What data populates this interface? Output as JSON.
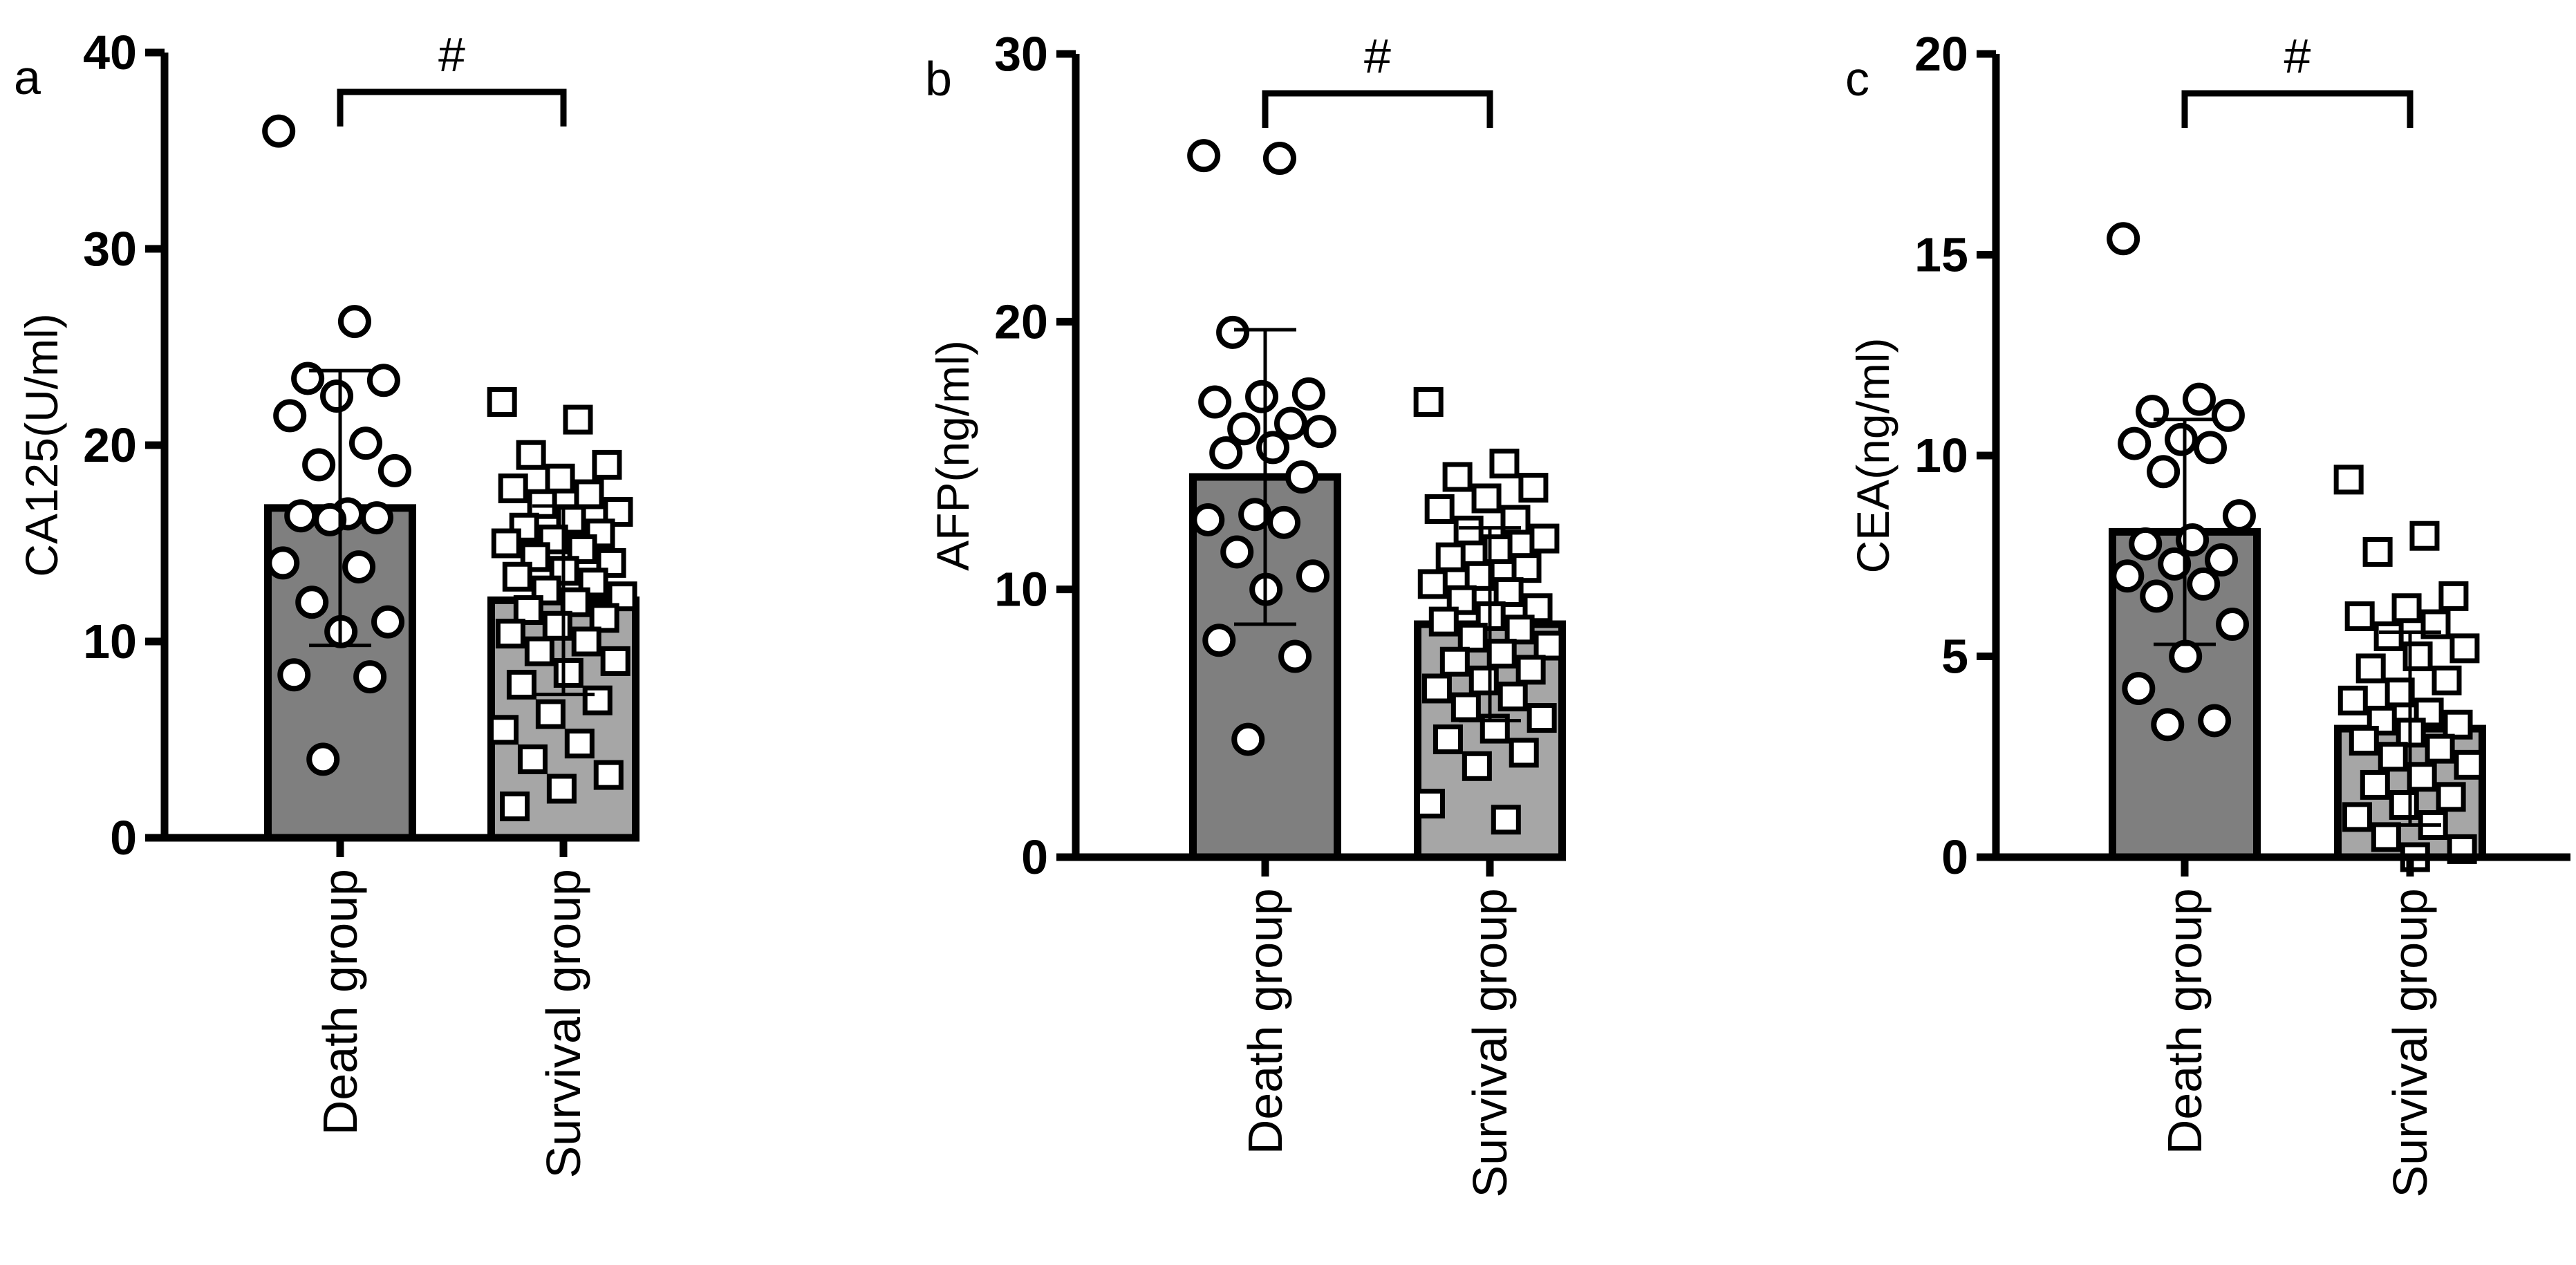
{
  "chart_data": [
    {
      "type": "bar",
      "panel_label": "a",
      "ylabel": "CA125(U/ml)",
      "annotation": "#",
      "categories": [
        "Death group",
        "Survival group"
      ],
      "values": [
        16.8,
        12.1
      ],
      "errors": [
        7.0,
        4.8
      ],
      "colors": [
        "#7f7f7f",
        "#a6a6a6"
      ],
      "markers": [
        "circle",
        "square"
      ],
      "points": [
        [
          36,
          26.3,
          23.4,
          23.3,
          22.5,
          21.5,
          20.1,
          19.0,
          18.7,
          16.5,
          16.4,
          16.3,
          16.2,
          14,
          13.8,
          12,
          11,
          10.5,
          8.3,
          8.2,
          4
        ],
        [
          22.2,
          21.3,
          19.5,
          19.0,
          18.3,
          17.8,
          17.5,
          17.0,
          16.6,
          16.2,
          15.8,
          15.5,
          15.2,
          15.0,
          14.7,
          14.3,
          14.0,
          13.6,
          13.3,
          13.0,
          12.6,
          12.3,
          12.0,
          11.6,
          11.2,
          10.8,
          10.4,
          10.0,
          9.5,
          9.0,
          8.4,
          7.8,
          7.0,
          6.3,
          5.5,
          4.8,
          4.0,
          3.2,
          2.5,
          1.6
        ]
      ],
      "ylim": [
        0,
        40
      ],
      "yticks": [
        0,
        10,
        20,
        30,
        40
      ]
    },
    {
      "type": "bar",
      "panel_label": "b",
      "ylabel": "AFP(ng/ml)",
      "annotation": "#",
      "categories": [
        "Death group",
        "Survival group"
      ],
      "values": [
        14.2,
        8.7
      ],
      "errors": [
        5.5,
        3.6
      ],
      "colors": [
        "#7f7f7f",
        "#a6a6a6"
      ],
      "markers": [
        "circle",
        "square"
      ],
      "points": [
        [
          26.2,
          26.1,
          19.6,
          17.3,
          17.2,
          17.0,
          16.2,
          16.0,
          15.9,
          15.3,
          15.1,
          14.2,
          12.8,
          12.6,
          12.5,
          11.4,
          10.5,
          10.0,
          8.1,
          7.5,
          4.4
        ],
        [
          17.0,
          14.7,
          14.2,
          13.8,
          13.4,
          13.0,
          12.6,
          12.2,
          11.9,
          11.5,
          11.2,
          10.8,
          10.5,
          10.2,
          9.9,
          9.6,
          9.3,
          9.0,
          8.8,
          8.5,
          8.2,
          7.9,
          7.6,
          7.3,
          7.0,
          6.6,
          6.3,
          6.0,
          5.6,
          5.2,
          4.8,
          4.4,
          3.9,
          3.4,
          2.0,
          1.4
        ]
      ],
      "ylim": [
        0,
        30
      ],
      "yticks": [
        0,
        10,
        20,
        30
      ]
    },
    {
      "type": "bar",
      "panel_label": "c",
      "ylabel": "CEA(ng/ml)",
      "annotation": "#",
      "categories": [
        "Death group",
        "Survival group"
      ],
      "values": [
        8.1,
        3.2
      ],
      "errors": [
        2.8,
        2.4
      ],
      "colors": [
        "#7f7f7f",
        "#a6a6a6"
      ],
      "markers": [
        "circle",
        "square"
      ],
      "points": [
        [
          15.4,
          11.4,
          11.1,
          11.0,
          10.4,
          10.3,
          10.2,
          9.6,
          8.5,
          7.9,
          7.8,
          7.4,
          7.3,
          7.0,
          6.8,
          6.5,
          5.8,
          5.0,
          4.2,
          3.4,
          3.3
        ],
        [
          9.4,
          8.0,
          7.6,
          6.5,
          6.2,
          6.0,
          5.8,
          5.5,
          5.2,
          5.0,
          4.7,
          4.4,
          4.1,
          3.9,
          3.6,
          3.4,
          3.3,
          3.1,
          2.9,
          2.7,
          2.5,
          2.3,
          2.0,
          1.8,
          1.5,
          1.3,
          1.0,
          0.8,
          0.5,
          0.2,
          0.0
        ]
      ],
      "ylim": [
        0,
        20
      ],
      "yticks": [
        0,
        5,
        10,
        15,
        20
      ]
    }
  ]
}
